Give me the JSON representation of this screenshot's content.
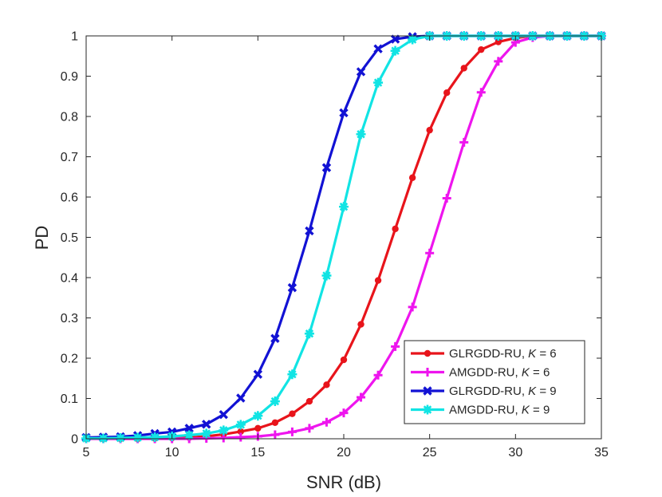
{
  "chart_data": {
    "type": "line",
    "title": "",
    "xlabel": "SNR (dB)",
    "ylabel": "PD",
    "xlim": [
      5,
      35
    ],
    "ylim": [
      0,
      1
    ],
    "grid": false,
    "legend_position": "bottom-right",
    "x_ticks": [
      "5",
      "10",
      "15",
      "20",
      "25",
      "30",
      "35"
    ],
    "y_ticks": [
      "0",
      "0.1",
      "0.2",
      "0.3",
      "0.4",
      "0.5",
      "0.6",
      "0.7",
      "0.8",
      "0.9",
      "1"
    ],
    "x": [
      5,
      6,
      7,
      8,
      9,
      10,
      11,
      12,
      13,
      14,
      15,
      16,
      17,
      18,
      19,
      20,
      21,
      22,
      23,
      24,
      25,
      26,
      27,
      28,
      29,
      30,
      31,
      32,
      33,
      34,
      35
    ],
    "series": [
      {
        "name": "GLRGDD-RU, ",
        "k_label": "K",
        "k_value": " = 6",
        "color": "#e8141b",
        "marker": "dot",
        "values": [
          0,
          0,
          0,
          0,
          0.001,
          0.002,
          0.003,
          0.006,
          0.011,
          0.018,
          0.026,
          0.04,
          0.062,
          0.093,
          0.134,
          0.196,
          0.284,
          0.393,
          0.521,
          0.648,
          0.766,
          0.859,
          0.92,
          0.966,
          0.985,
          0.995,
          1,
          1,
          1,
          1,
          1
        ]
      },
      {
        "name": "AMGDD-RU, ",
        "k_label": "K",
        "k_value": " = 6",
        "color": "#ee15ee",
        "marker": "plus",
        "values": [
          0,
          0,
          0,
          0,
          0,
          0,
          0,
          0.001,
          0.002,
          0.004,
          0.006,
          0.01,
          0.017,
          0.026,
          0.041,
          0.064,
          0.103,
          0.158,
          0.229,
          0.327,
          0.461,
          0.597,
          0.736,
          0.86,
          0.937,
          0.984,
          0.996,
          1,
          1,
          1,
          1
        ]
      },
      {
        "name": "GLRGDD-RU, ",
        "k_label": "K",
        "k_value": " = 9",
        "color": "#1212d4",
        "marker": "x",
        "values": [
          0.003,
          0.004,
          0.005,
          0.008,
          0.013,
          0.017,
          0.026,
          0.036,
          0.06,
          0.101,
          0.16,
          0.249,
          0.375,
          0.516,
          0.673,
          0.809,
          0.911,
          0.968,
          0.992,
          0.998,
          1,
          1,
          1,
          1,
          1,
          1,
          1,
          1,
          1,
          1,
          1
        ]
      },
      {
        "name": "AMGDD-RU, ",
        "k_label": "K",
        "k_value": " = 9",
        "color": "#11e4e4",
        "marker": "filled",
        "values": [
          0.001,
          0.001,
          0.002,
          0.003,
          0.004,
          0.006,
          0.009,
          0.013,
          0.021,
          0.035,
          0.057,
          0.093,
          0.16,
          0.261,
          0.405,
          0.576,
          0.756,
          0.884,
          0.963,
          0.991,
          1,
          1,
          1,
          1,
          1,
          1,
          1,
          1,
          1,
          1,
          1
        ]
      }
    ]
  }
}
